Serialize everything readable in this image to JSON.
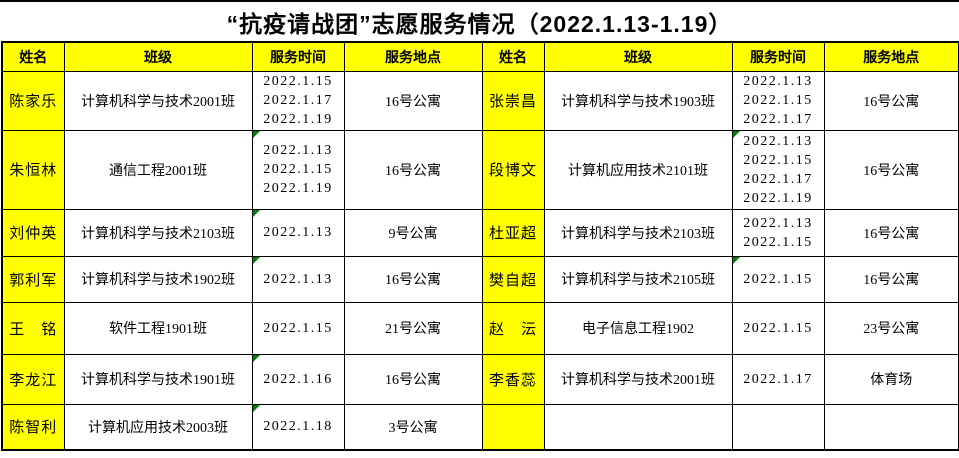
{
  "title": "“抗疫请战团”志愿服务情况（2022.1.13-1.19）",
  "colors": {
    "accent_yellow": "#FFFF00",
    "marker_green": "#008000",
    "border_black": "#000000",
    "text_black": "#000000"
  },
  "table": {
    "headers": [
      "姓名",
      "班级",
      "服务时间",
      "服务地点",
      "姓名",
      "班级",
      "服务时间",
      "服务地点"
    ],
    "rows": [
      {
        "left": {
          "name": "陈家乐",
          "class": "计算机科学与技术2001班",
          "dates": [
            "2022.1.15",
            "2022.1.17",
            "2022.1.19"
          ],
          "location": "16号公寓",
          "text_format_marker": false
        },
        "right": {
          "name": "张崇昌",
          "class": "计算机科学与技术1903班",
          "dates": [
            "2022.1.13",
            "2022.1.15",
            "2022.1.17"
          ],
          "location": "16号公寓",
          "text_format_marker": false
        }
      },
      {
        "left": {
          "name": "朱恒林",
          "class": "通信工程2001班",
          "dates": [
            "2022.1.13",
            "2022.1.15",
            "2022.1.19"
          ],
          "location": "16号公寓",
          "text_format_marker": true
        },
        "right": {
          "name": "段博文",
          "class": "计算机应用技术2101班",
          "dates": [
            "2022.1.13",
            "2022.1.15",
            "2022.1.17",
            "2022.1.19"
          ],
          "location": "16号公寓",
          "text_format_marker": true
        }
      },
      {
        "left": {
          "name": "刘仲英",
          "class": "计算机科学与技术2103班",
          "dates": [
            "2022.1.13"
          ],
          "location": "9号公寓",
          "text_format_marker": true
        },
        "right": {
          "name": "杜亚超",
          "class": "计算机科学与技术2103班",
          "dates": [
            "2022.1.13",
            "2022.1.15"
          ],
          "location": "16号公寓",
          "text_format_marker": false
        }
      },
      {
        "left": {
          "name": "郭利军",
          "class": "计算机科学与技术1902班",
          "dates": [
            "2022.1.13"
          ],
          "location": "16号公寓",
          "text_format_marker": true
        },
        "right": {
          "name": "樊自超",
          "class": "计算机科学与技术2105班",
          "dates": [
            "2022.1.15"
          ],
          "location": "16号公寓",
          "text_format_marker": true
        }
      },
      {
        "left": {
          "name": "王　铭",
          "class": "软件工程1901班",
          "dates": [
            "2022.1.15"
          ],
          "location": "21号公寓",
          "text_format_marker": false
        },
        "right": {
          "name": "赵　沄",
          "class": "电子信息工程1902",
          "dates": [
            "2022.1.15"
          ],
          "location": "23号公寓",
          "text_format_marker": false
        }
      },
      {
        "left": {
          "name": "李龙江",
          "class": "计算机科学与技术1901班",
          "dates": [
            "2022.1.16"
          ],
          "location": "16号公寓",
          "text_format_marker": true
        },
        "right": {
          "name": "李香蕊",
          "class": "计算机科学与技术2001班",
          "dates": [
            "2022.1.17"
          ],
          "location": "体育场",
          "text_format_marker": false
        }
      },
      {
        "left": {
          "name": "陈智利",
          "class": "计算机应用技术2003班",
          "dates": [
            "2022.1.18"
          ],
          "location": "3号公寓",
          "text_format_marker": true
        },
        "right": {
          "name": "",
          "class": "",
          "dates": [],
          "location": "",
          "text_format_marker": false
        }
      }
    ]
  }
}
